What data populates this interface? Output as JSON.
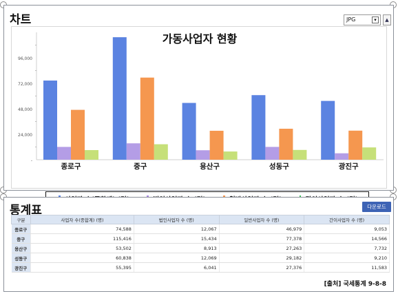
{
  "chart_panel": {
    "title": "차트",
    "format_value": "JPG",
    "up_icon": "▲"
  },
  "table_panel": {
    "title": "통계표",
    "download_label": "다운로드",
    "source": "[출처] 국세통계 9-8-8"
  },
  "colors": {
    "s1": "#5b83e1",
    "s2": "#b49de6",
    "s3": "#f5974f",
    "s4": "#c6e079"
  },
  "chart_data": {
    "type": "bar",
    "title": "가동사업자 현황",
    "categories": [
      "종로구",
      "중구",
      "용산구",
      "성동구",
      "광진구"
    ],
    "yticks": [
      "-",
      "24,000",
      "48,000",
      "72,000",
      "96,000"
    ],
    "ylim": [
      0,
      120000
    ],
    "grid": false,
    "legend_position": "bottom",
    "series": [
      {
        "name": "사업자 수(종합계) (명)",
        "values": [
          74588,
          115416,
          53502,
          60838,
          55395
        ]
      },
      {
        "name": "법인사업자 수 (명)",
        "values": [
          12067,
          15434,
          8913,
          12069,
          6041
        ]
      },
      {
        "name": "일반사업자 수 (명)",
        "values": [
          46979,
          77378,
          27263,
          29182,
          27376
        ]
      },
      {
        "name": "간이사업자 수 (명)",
        "values": [
          9053,
          14566,
          7732,
          9210,
          11583
        ]
      }
    ]
  },
  "table": {
    "headers": [
      "구분",
      "사업자 수(종합계) (명)",
      "법인사업자 수 (명)",
      "일반사업자 수 (명)",
      "간이사업자 수 (명)"
    ],
    "rows": [
      {
        "label": "종로구",
        "cells": [
          "74,588",
          "12,067",
          "46,979",
          "9,053"
        ]
      },
      {
        "label": "중구",
        "cells": [
          "115,416",
          "15,434",
          "77,378",
          "14,566"
        ]
      },
      {
        "label": "용산구",
        "cells": [
          "53,502",
          "8,913",
          "27,263",
          "7,732"
        ]
      },
      {
        "label": "성동구",
        "cells": [
          "60,838",
          "12,069",
          "29,182",
          "9,210"
        ]
      },
      {
        "label": "광진구",
        "cells": [
          "55,395",
          "6,041",
          "27,376",
          "11,583"
        ]
      }
    ]
  }
}
